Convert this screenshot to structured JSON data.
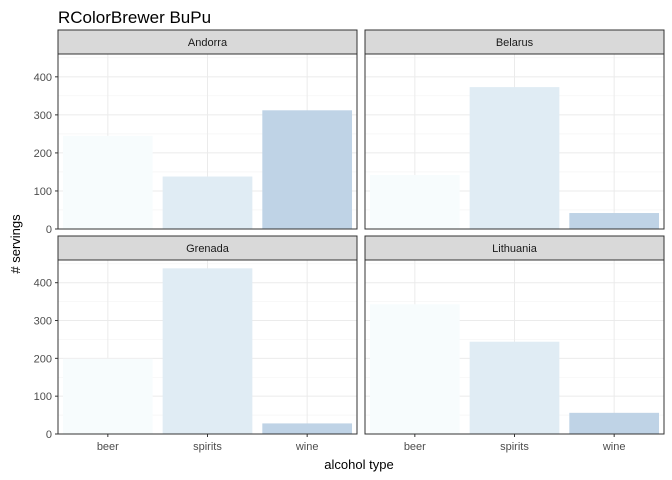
{
  "chart_data": {
    "type": "bar",
    "title": "RColorBrewer BuPu",
    "xlabel": "alcohol type",
    "ylabel": "# servings",
    "categories": [
      "beer",
      "spirits",
      "wine"
    ],
    "ylim": [
      0,
      460
    ],
    "yticks": [
      0,
      100,
      200,
      300,
      400
    ],
    "yticks_labels": [
      "0",
      "100",
      "200",
      "300",
      "400"
    ],
    "grid": true,
    "facet_layout": "2x2",
    "colors": {
      "beer": "#f7fcfd",
      "spirits": "#e0ecf4",
      "wine": "#bfd3e6"
    },
    "panels": [
      {
        "name": "Andorra",
        "values": [
          245,
          138,
          312
        ]
      },
      {
        "name": "Belarus",
        "values": [
          142,
          373,
          42
        ]
      },
      {
        "name": "Grenada",
        "values": [
          199,
          438,
          28
        ]
      },
      {
        "name": "Lithuania",
        "values": [
          343,
          244,
          56
        ]
      }
    ]
  }
}
